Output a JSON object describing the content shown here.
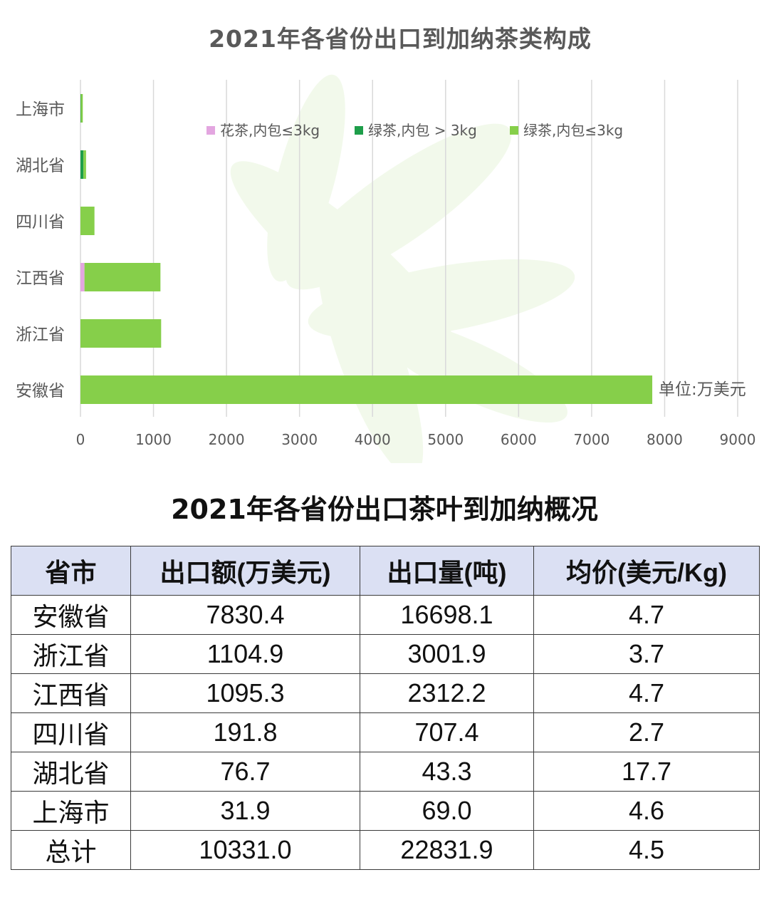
{
  "chart_data": {
    "type": "bar",
    "orientation": "horizontal",
    "stacked": true,
    "title": "2021年各省份出口到加纳茶类构成",
    "categories": [
      "安徽省",
      "浙江省",
      "江西省",
      "四川省",
      "湖北省",
      "上海市"
    ],
    "series": [
      {
        "name": "花茶,内包≤3kg",
        "color": "#e3a6e0",
        "values": [
          0,
          0,
          55,
          0,
          0,
          0
        ]
      },
      {
        "name": "绿茶,内包 > 3kg",
        "color": "#1e9e4a",
        "values": [
          0,
          0,
          0,
          0,
          40,
          5
        ]
      },
      {
        "name": "绿茶,内包≤3kg",
        "color": "#86cf4a",
        "values": [
          7830.4,
          1104.9,
          1040.3,
          191.8,
          36.7,
          26.9
        ]
      }
    ],
    "xlim": [
      0,
      9000
    ],
    "xticks": [
      "0",
      "1000",
      "2000",
      "3000",
      "4000",
      "5000",
      "6000",
      "7000",
      "8000",
      "9000"
    ],
    "grid": true,
    "legend_position": "top",
    "annotation": "单位:万美元"
  },
  "table": {
    "title": "2021年各省份出口茶叶到加纳概况",
    "headers": [
      "省市",
      "出口额(万美元)",
      "出口量(吨)",
      "均价(美元/Kg)"
    ],
    "rows": [
      [
        "安徽省",
        "7830.4",
        "16698.1",
        "4.7"
      ],
      [
        "浙江省",
        "1104.9",
        "3001.9",
        "3.7"
      ],
      [
        "江西省",
        "1095.3",
        "2312.2",
        "4.7"
      ],
      [
        "四川省",
        "191.8",
        "707.4",
        "2.7"
      ],
      [
        "湖北省",
        "76.7",
        "43.3",
        "17.7"
      ],
      [
        "上海市",
        "31.9",
        "69.0",
        "4.6"
      ],
      [
        "总计",
        "10331.0",
        "22831.9",
        "4.5"
      ]
    ]
  }
}
